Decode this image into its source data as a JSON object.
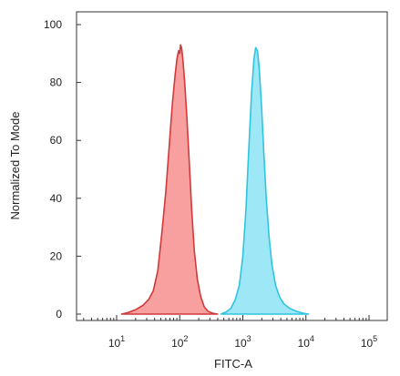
{
  "chart_data": {
    "type": "area",
    "title": "",
    "xlabel": "FITC-A",
    "ylabel": "Normalized To Mode",
    "x_scale": "log",
    "xlim": [
      1,
      100000
    ],
    "ylim": [
      0,
      105
    ],
    "x_ticks": [
      {
        "value": 10,
        "base": "10",
        "exp": "1"
      },
      {
        "value": 100,
        "base": "10",
        "exp": "2"
      },
      {
        "value": 1000,
        "base": "10",
        "exp": "3"
      },
      {
        "value": 10000,
        "base": "10",
        "exp": "4"
      },
      {
        "value": 100000,
        "base": "10",
        "exp": "5"
      }
    ],
    "y_ticks": [
      0,
      20,
      40,
      60,
      80,
      100
    ],
    "grid": false,
    "series": [
      {
        "fill": "#f8a0a0",
        "stroke": "#d03a3a",
        "points": [
          [
            12,
            0
          ],
          [
            15,
            0.5
          ],
          [
            20,
            1.5
          ],
          [
            26,
            3
          ],
          [
            32,
            5
          ],
          [
            38,
            8
          ],
          [
            45,
            15
          ],
          [
            52,
            28
          ],
          [
            60,
            42
          ],
          [
            68,
            58
          ],
          [
            76,
            72
          ],
          [
            84,
            82
          ],
          [
            90,
            88
          ],
          [
            96,
            91
          ],
          [
            100,
            90
          ],
          [
            103,
            93
          ],
          [
            107,
            92
          ],
          [
            112,
            88
          ],
          [
            120,
            80
          ],
          [
            130,
            68
          ],
          [
            142,
            52
          ],
          [
            155,
            36
          ],
          [
            170,
            22
          ],
          [
            190,
            12
          ],
          [
            215,
            6
          ],
          [
            245,
            2.5
          ],
          [
            280,
            1
          ],
          [
            330,
            0.3
          ],
          [
            400,
            0
          ]
        ]
      },
      {
        "fill": "#9ee7f7",
        "stroke": "#2fc4e0",
        "points": [
          [
            450,
            0
          ],
          [
            550,
            0.8
          ],
          [
            650,
            2
          ],
          [
            760,
            5
          ],
          [
            880,
            10
          ],
          [
            1000,
            20
          ],
          [
            1120,
            36
          ],
          [
            1250,
            58
          ],
          [
            1380,
            77
          ],
          [
            1500,
            88
          ],
          [
            1600,
            92
          ],
          [
            1700,
            91
          ],
          [
            1820,
            85
          ],
          [
            1980,
            72
          ],
          [
            2150,
            56
          ],
          [
            2350,
            40
          ],
          [
            2600,
            27
          ],
          [
            2900,
            17
          ],
          [
            3300,
            10
          ],
          [
            3800,
            6
          ],
          [
            4500,
            3.5
          ],
          [
            5500,
            2
          ],
          [
            7000,
            1
          ],
          [
            9000,
            0.3
          ],
          [
            11000,
            0
          ]
        ]
      }
    ]
  }
}
